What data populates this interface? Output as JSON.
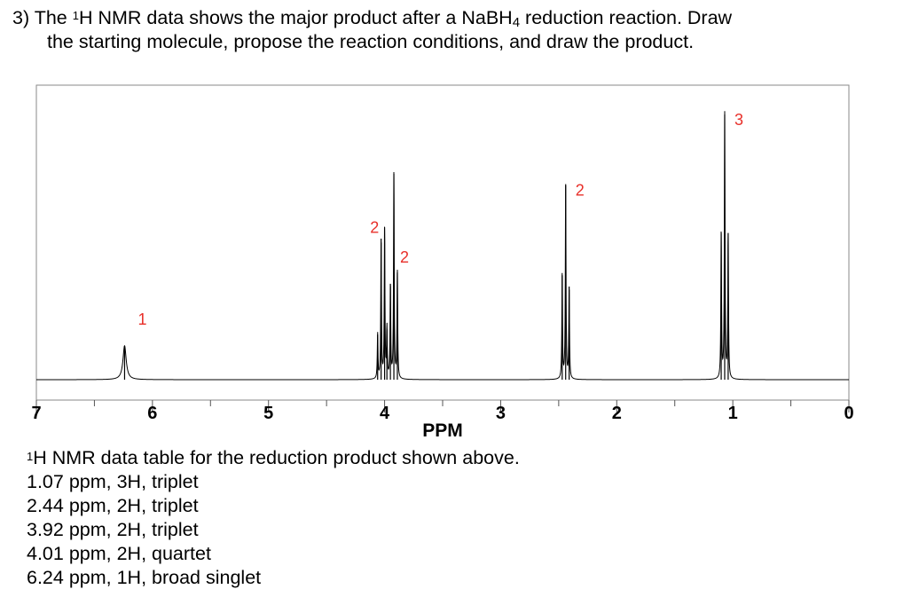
{
  "question": {
    "number": "3)",
    "part1": "The ",
    "sup": "1",
    "part2": "H NMR data shows the major product after a NaBH",
    "sub": "4",
    "part3": " reduction reaction.  Draw",
    "line2": "the starting molecule, propose the reaction conditions, and draw the product."
  },
  "chart_data": {
    "type": "line",
    "xlabel": "PPM",
    "x_ticks": [
      "7",
      "6",
      "5",
      "4",
      "3",
      "2",
      "1",
      "0"
    ],
    "xlim": [
      7,
      0
    ],
    "x_reversed": true,
    "grid": false,
    "line_color": "#000000",
    "label_color": "#e8302a",
    "peaks": [
      {
        "ppm": 6.24,
        "integration": "1",
        "multiplicity": "broad singlet",
        "lines": [
          {
            "ppm": 6.24,
            "height": 0.12
          }
        ]
      },
      {
        "ppm": 4.01,
        "integration": "2",
        "multiplicity": "quartet",
        "lines": [
          {
            "ppm": 4.06,
            "height": 0.16
          },
          {
            "ppm": 4.03,
            "height": 0.5
          },
          {
            "ppm": 4.0,
            "height": 0.54
          },
          {
            "ppm": 3.98,
            "height": 0.18
          }
        ]
      },
      {
        "ppm": 3.92,
        "integration": "2",
        "multiplicity": "triplet",
        "lines": [
          {
            "ppm": 3.95,
            "height": 0.34
          },
          {
            "ppm": 3.92,
            "height": 0.73
          },
          {
            "ppm": 3.89,
            "height": 0.38
          }
        ]
      },
      {
        "ppm": 2.44,
        "integration": "2",
        "multiplicity": "triplet",
        "lines": [
          {
            "ppm": 2.47,
            "height": 0.37
          },
          {
            "ppm": 2.44,
            "height": 0.69
          },
          {
            "ppm": 2.41,
            "height": 0.33
          }
        ]
      },
      {
        "ppm": 1.07,
        "integration": "3",
        "multiplicity": "triplet",
        "lines": [
          {
            "ppm": 1.1,
            "height": 0.52
          },
          {
            "ppm": 1.07,
            "height": 0.94
          },
          {
            "ppm": 1.04,
            "height": 0.52
          }
        ]
      }
    ]
  },
  "table": {
    "title_sup": "1",
    "title": "H NMR data table for the reduction product shown above.",
    "rows": [
      "1.07 ppm, 3H, triplet",
      "2.44 ppm, 2H, triplet",
      "3.92 ppm, 2H, triplet",
      "4.01 ppm, 2H, quartet",
      "6.24 ppm, 1H, broad singlet"
    ]
  }
}
